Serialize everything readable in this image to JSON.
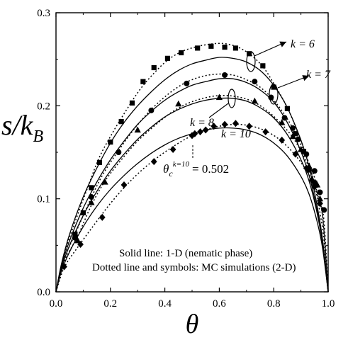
{
  "chart_data": {
    "type": "scatter",
    "xlabel": "θ",
    "ylabel": {
      "main": "s/k",
      "sub": "B"
    },
    "xlim": [
      0.0,
      1.0
    ],
    "ylim": [
      0.0,
      0.3
    ],
    "xticks": [
      "0.0",
      "0.2",
      "0.4",
      "0.6",
      "0.8",
      "1.0"
    ],
    "yticks": [
      "0.0",
      "0.1",
      "0.2",
      "0.3"
    ],
    "grid": false,
    "series": [
      {
        "name": "k = 6",
        "marker": "square",
        "points": [
          [
            0.07,
            0.062
          ],
          [
            0.1,
            0.085
          ],
          [
            0.13,
            0.112
          ],
          [
            0.16,
            0.139
          ],
          [
            0.2,
            0.161
          ],
          [
            0.24,
            0.183
          ],
          [
            0.28,
            0.203
          ],
          [
            0.32,
            0.226
          ],
          [
            0.36,
            0.241
          ],
          [
            0.41,
            0.251
          ],
          [
            0.46,
            0.257
          ],
          [
            0.52,
            0.262
          ],
          [
            0.57,
            0.264
          ],
          [
            0.62,
            0.263
          ],
          [
            0.66,
            0.262
          ],
          [
            0.71,
            0.256
          ],
          [
            0.76,
            0.243
          ],
          [
            0.8,
            0.22
          ],
          [
            0.85,
            0.197
          ],
          [
            0.88,
            0.17
          ],
          [
            0.91,
            0.151
          ],
          [
            0.93,
            0.131
          ],
          [
            0.95,
            0.117
          ]
        ],
        "model_1d": [
          [
            0.0,
            0.0
          ],
          [
            0.02,
            0.03
          ],
          [
            0.05,
            0.062
          ],
          [
            0.1,
            0.102
          ],
          [
            0.15,
            0.133
          ],
          [
            0.2,
            0.16
          ],
          [
            0.25,
            0.182
          ],
          [
            0.3,
            0.2
          ],
          [
            0.35,
            0.215
          ],
          [
            0.4,
            0.228
          ],
          [
            0.45,
            0.238
          ],
          [
            0.5,
            0.245
          ],
          [
            0.55,
            0.249
          ],
          [
            0.6,
            0.252
          ],
          [
            0.65,
            0.251
          ],
          [
            0.7,
            0.247
          ],
          [
            0.75,
            0.238
          ],
          [
            0.8,
            0.222
          ],
          [
            0.85,
            0.198
          ],
          [
            0.9,
            0.163
          ],
          [
            0.93,
            0.134
          ],
          [
            0.96,
            0.092
          ],
          [
            0.98,
            0.055
          ],
          [
            1.0,
            0.0
          ]
        ],
        "mc_2d": [
          [
            0.0,
            0.0
          ],
          [
            0.03,
            0.04
          ],
          [
            0.07,
            0.075
          ],
          [
            0.12,
            0.115
          ],
          [
            0.16,
            0.145
          ],
          [
            0.21,
            0.172
          ],
          [
            0.26,
            0.196
          ],
          [
            0.31,
            0.218
          ],
          [
            0.36,
            0.235
          ],
          [
            0.41,
            0.249
          ],
          [
            0.46,
            0.258
          ],
          [
            0.51,
            0.263
          ],
          [
            0.56,
            0.266
          ],
          [
            0.61,
            0.267
          ],
          [
            0.66,
            0.264
          ],
          [
            0.71,
            0.256
          ],
          [
            0.76,
            0.242
          ],
          [
            0.8,
            0.224
          ],
          [
            0.85,
            0.198
          ],
          [
            0.89,
            0.17
          ],
          [
            0.92,
            0.146
          ],
          [
            0.95,
            0.115
          ],
          [
            0.97,
            0.085
          ],
          [
            0.985,
            0.055
          ],
          [
            1.0,
            0.0
          ]
        ]
      },
      {
        "name": "k = 7",
        "marker": "circle",
        "points": [
          [
            0.07,
            0.058
          ],
          [
            0.13,
            0.102
          ],
          [
            0.23,
            0.15
          ],
          [
            0.35,
            0.195
          ],
          [
            0.48,
            0.224
          ],
          [
            0.62,
            0.233
          ],
          [
            0.73,
            0.226
          ],
          [
            0.79,
            0.209
          ],
          [
            0.84,
            0.187
          ],
          [
            0.87,
            0.176
          ],
          [
            0.89,
            0.164
          ],
          [
            0.92,
            0.148
          ],
          [
            0.95,
            0.13
          ],
          [
            0.97,
            0.107
          ],
          [
            0.985,
            0.088
          ]
        ],
        "model_1d": [
          [
            0.0,
            0.0
          ],
          [
            0.02,
            0.028
          ],
          [
            0.05,
            0.055
          ],
          [
            0.1,
            0.09
          ],
          [
            0.15,
            0.118
          ],
          [
            0.2,
            0.142
          ],
          [
            0.25,
            0.162
          ],
          [
            0.3,
            0.18
          ],
          [
            0.35,
            0.194
          ],
          [
            0.4,
            0.206
          ],
          [
            0.45,
            0.215
          ],
          [
            0.5,
            0.222
          ],
          [
            0.55,
            0.226
          ],
          [
            0.6,
            0.229
          ],
          [
            0.65,
            0.229
          ],
          [
            0.7,
            0.225
          ],
          [
            0.75,
            0.217
          ],
          [
            0.8,
            0.204
          ],
          [
            0.85,
            0.182
          ],
          [
            0.9,
            0.151
          ],
          [
            0.93,
            0.125
          ],
          [
            0.96,
            0.087
          ],
          [
            0.98,
            0.052
          ],
          [
            1.0,
            0.0
          ]
        ],
        "mc_2d": [
          [
            0.0,
            0.0
          ],
          [
            0.03,
            0.035
          ],
          [
            0.07,
            0.062
          ],
          [
            0.12,
            0.095
          ],
          [
            0.17,
            0.125
          ],
          [
            0.23,
            0.152
          ],
          [
            0.29,
            0.176
          ],
          [
            0.35,
            0.196
          ],
          [
            0.41,
            0.212
          ],
          [
            0.47,
            0.224
          ],
          [
            0.53,
            0.231
          ],
          [
            0.59,
            0.234
          ],
          [
            0.65,
            0.233
          ],
          [
            0.7,
            0.228
          ],
          [
            0.75,
            0.22
          ],
          [
            0.8,
            0.206
          ],
          [
            0.85,
            0.186
          ],
          [
            0.89,
            0.164
          ],
          [
            0.92,
            0.145
          ],
          [
            0.95,
            0.123
          ],
          [
            0.97,
            0.1
          ],
          [
            0.985,
            0.075
          ],
          [
            1.0,
            0.0
          ]
        ]
      },
      {
        "name": "k = 8",
        "marker": "triangle",
        "points": [
          [
            0.08,
            0.055
          ],
          [
            0.13,
            0.096
          ],
          [
            0.18,
            0.118
          ],
          [
            0.3,
            0.174
          ],
          [
            0.45,
            0.202
          ],
          [
            0.6,
            0.209
          ],
          [
            0.73,
            0.205
          ],
          [
            0.83,
            0.182
          ],
          [
            0.87,
            0.167
          ],
          [
            0.9,
            0.153
          ],
          [
            0.93,
            0.135
          ],
          [
            0.96,
            0.115
          ],
          [
            0.97,
            0.1
          ]
        ],
        "model_1d": [
          [
            0.0,
            0.0
          ],
          [
            0.02,
            0.025
          ],
          [
            0.05,
            0.05
          ],
          [
            0.1,
            0.082
          ],
          [
            0.15,
            0.108
          ],
          [
            0.2,
            0.13
          ],
          [
            0.25,
            0.148
          ],
          [
            0.3,
            0.164
          ],
          [
            0.35,
            0.177
          ],
          [
            0.4,
            0.188
          ],
          [
            0.45,
            0.196
          ],
          [
            0.5,
            0.202
          ],
          [
            0.55,
            0.206
          ],
          [
            0.6,
            0.208
          ],
          [
            0.65,
            0.208
          ],
          [
            0.7,
            0.205
          ],
          [
            0.75,
            0.198
          ],
          [
            0.8,
            0.187
          ],
          [
            0.85,
            0.169
          ],
          [
            0.9,
            0.142
          ],
          [
            0.93,
            0.119
          ],
          [
            0.96,
            0.084
          ],
          [
            0.98,
            0.05
          ],
          [
            1.0,
            0.0
          ]
        ],
        "mc_2d": [
          [
            0.0,
            0.0
          ],
          [
            0.03,
            0.032
          ],
          [
            0.08,
            0.06
          ],
          [
            0.13,
            0.093
          ],
          [
            0.18,
            0.119
          ],
          [
            0.24,
            0.142
          ],
          [
            0.3,
            0.162
          ],
          [
            0.36,
            0.178
          ],
          [
            0.42,
            0.192
          ],
          [
            0.48,
            0.202
          ],
          [
            0.54,
            0.208
          ],
          [
            0.6,
            0.211
          ],
          [
            0.66,
            0.21
          ],
          [
            0.72,
            0.205
          ],
          [
            0.77,
            0.196
          ],
          [
            0.82,
            0.183
          ],
          [
            0.87,
            0.166
          ],
          [
            0.91,
            0.146
          ],
          [
            0.94,
            0.126
          ],
          [
            0.96,
            0.106
          ],
          [
            0.98,
            0.08
          ],
          [
            1.0,
            0.0
          ]
        ]
      },
      {
        "name": "k = 10",
        "marker": "diamond",
        "points": [
          [
            0.03,
            0.027
          ],
          [
            0.09,
            0.051
          ],
          [
            0.17,
            0.08
          ],
          [
            0.25,
            0.115
          ],
          [
            0.36,
            0.14
          ],
          [
            0.43,
            0.153
          ],
          [
            0.5,
            0.168
          ],
          [
            0.51,
            0.17
          ],
          [
            0.53,
            0.172
          ],
          [
            0.55,
            0.174
          ],
          [
            0.58,
            0.178
          ],
          [
            0.62,
            0.18
          ],
          [
            0.66,
            0.181
          ],
          [
            0.71,
            0.178
          ],
          [
            0.77,
            0.172
          ],
          [
            0.83,
            0.163
          ],
          [
            0.88,
            0.148
          ],
          [
            0.92,
            0.133
          ],
          [
            0.94,
            0.12
          ],
          [
            0.95,
            0.113
          ],
          [
            0.97,
            0.095
          ]
        ],
        "model_1d": [
          [
            0.0,
            0.0
          ],
          [
            0.02,
            0.022
          ],
          [
            0.05,
            0.043
          ],
          [
            0.1,
            0.07
          ],
          [
            0.15,
            0.092
          ],
          [
            0.2,
            0.11
          ],
          [
            0.25,
            0.125
          ],
          [
            0.3,
            0.138
          ],
          [
            0.35,
            0.149
          ],
          [
            0.4,
            0.158
          ],
          [
            0.45,
            0.165
          ],
          [
            0.5,
            0.17
          ],
          [
            0.55,
            0.174
          ],
          [
            0.6,
            0.176
          ],
          [
            0.65,
            0.176
          ],
          [
            0.7,
            0.174
          ],
          [
            0.75,
            0.169
          ],
          [
            0.8,
            0.16
          ],
          [
            0.85,
            0.146
          ],
          [
            0.9,
            0.124
          ],
          [
            0.93,
            0.105
          ],
          [
            0.96,
            0.075
          ],
          [
            0.98,
            0.046
          ],
          [
            1.0,
            0.0
          ]
        ],
        "mc_2d": [
          [
            0.0,
            0.0
          ],
          [
            0.03,
            0.026
          ],
          [
            0.08,
            0.048
          ],
          [
            0.14,
            0.072
          ],
          [
            0.2,
            0.095
          ],
          [
            0.26,
            0.115
          ],
          [
            0.32,
            0.132
          ],
          [
            0.38,
            0.146
          ],
          [
            0.44,
            0.158
          ],
          [
            0.5,
            0.168
          ],
          [
            0.56,
            0.175
          ],
          [
            0.62,
            0.179
          ],
          [
            0.67,
            0.18
          ],
          [
            0.72,
            0.178
          ],
          [
            0.77,
            0.173
          ],
          [
            0.82,
            0.164
          ],
          [
            0.87,
            0.15
          ],
          [
            0.91,
            0.135
          ],
          [
            0.94,
            0.12
          ],
          [
            0.96,
            0.105
          ],
          [
            0.98,
            0.08
          ],
          [
            1.0,
            0.0
          ]
        ]
      }
    ],
    "annotations": {
      "k6": "k = 6",
      "k7": "k = 7",
      "k8": "k = 8",
      "k10": "k = 10",
      "theta_c": {
        "symbol": "θ",
        "sub": "c",
        "sup": "k=10",
        "value": "= 0.502"
      },
      "note_line1": "Solid line: 1-D (nematic phase)",
      "note_line2": "Dotted line and symbols: MC simulations (2-D)"
    }
  }
}
